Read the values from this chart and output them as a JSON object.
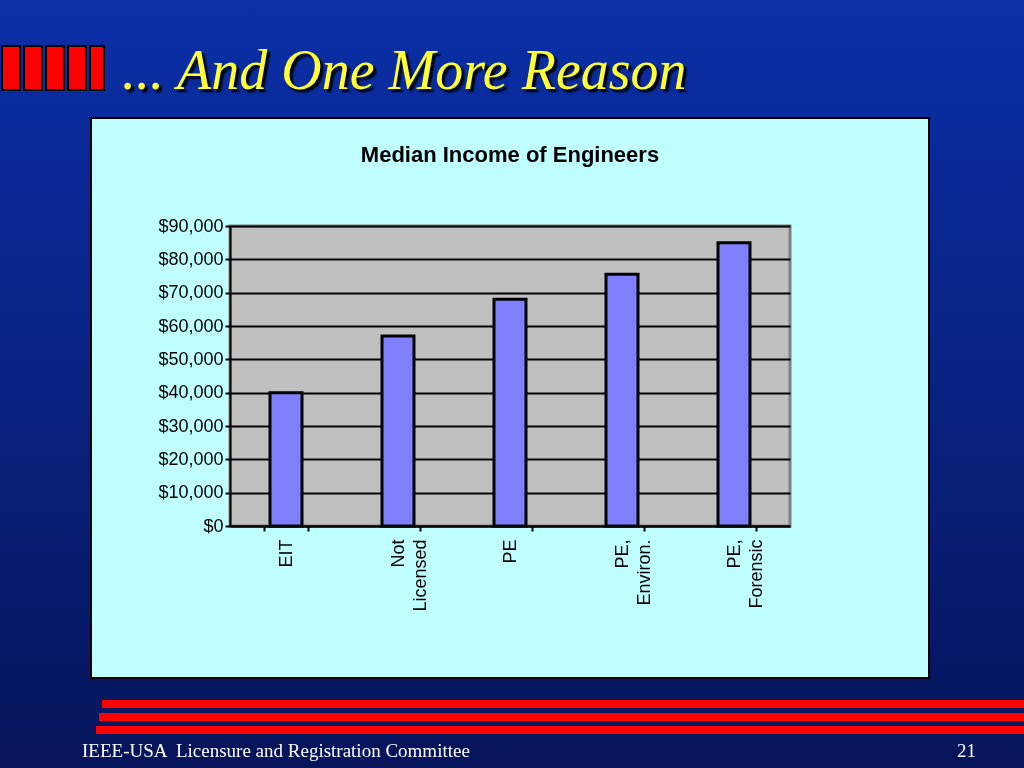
{
  "chart_data": {
    "type": "bar",
    "title": "... And One More Reason",
    "subtitle": "Median Income of Engineers",
    "categories": [
      "EIT",
      "Not Licensed",
      "PE",
      "PE, Environ.",
      "PE, Forensic"
    ],
    "values": [
      40000,
      57000,
      68000,
      75500,
      85000
    ],
    "color": "#8080ff",
    "ylim": [
      0,
      90000
    ],
    "yticks": [
      {
        "value": 0,
        "label": "$0"
      },
      {
        "value": 10000,
        "label": "$10,000"
      },
      {
        "value": 20000,
        "label": "$20,000"
      },
      {
        "value": 30000,
        "label": "$30,000"
      },
      {
        "value": 40000,
        "label": "$40,000"
      },
      {
        "value": 50000,
        "label": "$50,000"
      },
      {
        "value": 60000,
        "label": "$60,000"
      },
      {
        "value": 70000,
        "label": "$70,000"
      },
      {
        "value": 80000,
        "label": "$80,000"
      },
      {
        "value": 90000,
        "label": "$90,000"
      }
    ],
    "grid": "y",
    "annotations": [
      "IEEE-USA  Licensure and Registration Committee",
      "21"
    ]
  }
}
